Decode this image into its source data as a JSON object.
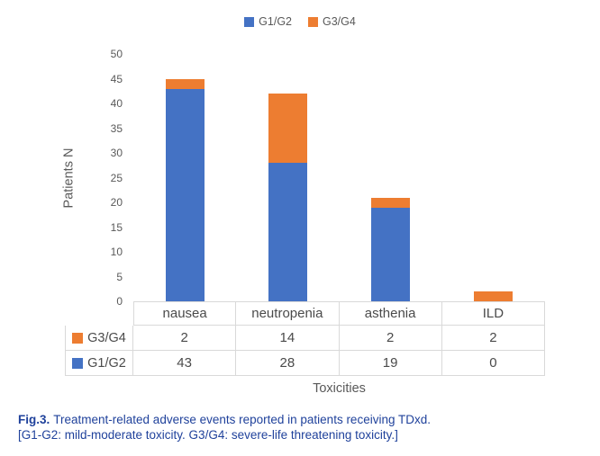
{
  "legend": {
    "items": [
      {
        "label": "G1/G2",
        "color": "#4472C4"
      },
      {
        "label": "G3/G4",
        "color": "#ED7D31"
      }
    ]
  },
  "chart_data": {
    "type": "bar",
    "stacked": true,
    "categories": [
      "nausea",
      "neutropenia",
      "asthenia",
      "ILD"
    ],
    "series": [
      {
        "name": "G1/G2",
        "color": "#4472C4",
        "values": [
          43,
          28,
          19,
          0
        ]
      },
      {
        "name": "G3/G4",
        "color": "#ED7D31",
        "values": [
          2,
          14,
          2,
          2
        ]
      }
    ],
    "title": "",
    "xlabel": "Toxicities",
    "ylabel": "Patients N",
    "ylim": [
      0,
      50
    ],
    "ytick_step": 5,
    "yticks": [
      0,
      5,
      10,
      15,
      20,
      25,
      30,
      35,
      40,
      45,
      50
    ],
    "grid": false,
    "legend_position": "top-center",
    "data_table": {
      "rows": [
        {
          "name": "G3/G4",
          "color": "#ED7D31",
          "values": [
            2,
            14,
            2,
            2
          ]
        },
        {
          "name": "G1/G2",
          "color": "#4472C4",
          "values": [
            43,
            28,
            19,
            0
          ]
        }
      ]
    }
  },
  "caption": {
    "fig_label": "Fig.3.",
    "text": "Treatment-related adverse events reported in patients receiving TDxd.",
    "note": "[G1-G2: mild-moderate toxicity. G3/G4: severe-life threatening toxicity.]"
  },
  "colors": {
    "bar_blue": "#4472C4",
    "bar_orange": "#ED7D31",
    "axis_text": "#595959",
    "table_border": "#D9D9D9",
    "caption_text": "#1F419B"
  }
}
